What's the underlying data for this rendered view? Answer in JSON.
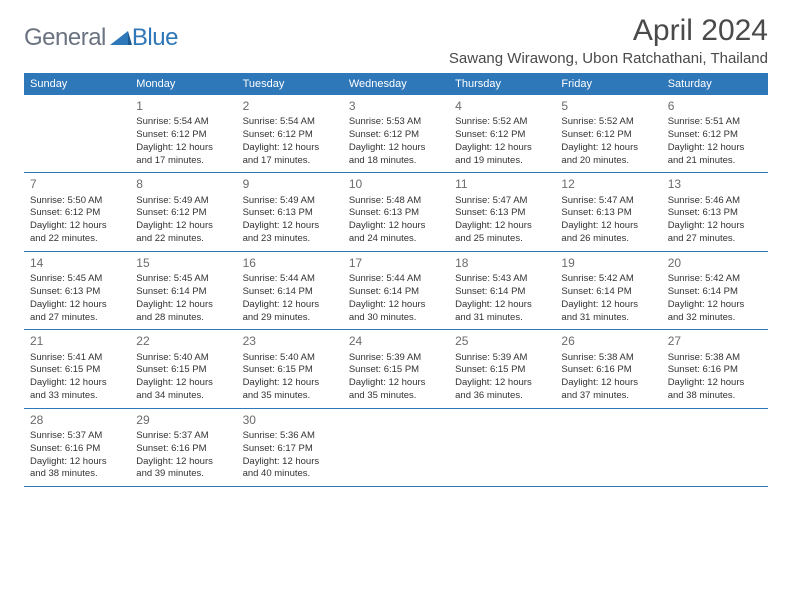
{
  "logo": {
    "text1": "General",
    "text2": "Blue"
  },
  "title": "April 2024",
  "location": "Sawang Wirawong, Ubon Ratchathani, Thailand",
  "colors": {
    "header_bg": "#2e77b8",
    "header_text": "#ffffff",
    "border": "#2e77b8",
    "body_text": "#333333",
    "daynum": "#6b6b6b",
    "logo_gray": "#6b7280",
    "logo_blue": "#2e77b8",
    "background": "#ffffff"
  },
  "typography": {
    "title_fontsize": 30,
    "location_fontsize": 15,
    "header_fontsize": 11,
    "daynum_fontsize": 12,
    "cell_fontsize": 9.5,
    "logo_fontsize": 24
  },
  "day_names": [
    "Sunday",
    "Monday",
    "Tuesday",
    "Wednesday",
    "Thursday",
    "Friday",
    "Saturday"
  ],
  "weeks": [
    [
      {
        "n": "",
        "sr": "",
        "ss": "",
        "dl": ""
      },
      {
        "n": "1",
        "sr": "Sunrise: 5:54 AM",
        "ss": "Sunset: 6:12 PM",
        "dl": "Daylight: 12 hours and 17 minutes."
      },
      {
        "n": "2",
        "sr": "Sunrise: 5:54 AM",
        "ss": "Sunset: 6:12 PM",
        "dl": "Daylight: 12 hours and 17 minutes."
      },
      {
        "n": "3",
        "sr": "Sunrise: 5:53 AM",
        "ss": "Sunset: 6:12 PM",
        "dl": "Daylight: 12 hours and 18 minutes."
      },
      {
        "n": "4",
        "sr": "Sunrise: 5:52 AM",
        "ss": "Sunset: 6:12 PM",
        "dl": "Daylight: 12 hours and 19 minutes."
      },
      {
        "n": "5",
        "sr": "Sunrise: 5:52 AM",
        "ss": "Sunset: 6:12 PM",
        "dl": "Daylight: 12 hours and 20 minutes."
      },
      {
        "n": "6",
        "sr": "Sunrise: 5:51 AM",
        "ss": "Sunset: 6:12 PM",
        "dl": "Daylight: 12 hours and 21 minutes."
      }
    ],
    [
      {
        "n": "7",
        "sr": "Sunrise: 5:50 AM",
        "ss": "Sunset: 6:12 PM",
        "dl": "Daylight: 12 hours and 22 minutes."
      },
      {
        "n": "8",
        "sr": "Sunrise: 5:49 AM",
        "ss": "Sunset: 6:12 PM",
        "dl": "Daylight: 12 hours and 22 minutes."
      },
      {
        "n": "9",
        "sr": "Sunrise: 5:49 AM",
        "ss": "Sunset: 6:13 PM",
        "dl": "Daylight: 12 hours and 23 minutes."
      },
      {
        "n": "10",
        "sr": "Sunrise: 5:48 AM",
        "ss": "Sunset: 6:13 PM",
        "dl": "Daylight: 12 hours and 24 minutes."
      },
      {
        "n": "11",
        "sr": "Sunrise: 5:47 AM",
        "ss": "Sunset: 6:13 PM",
        "dl": "Daylight: 12 hours and 25 minutes."
      },
      {
        "n": "12",
        "sr": "Sunrise: 5:47 AM",
        "ss": "Sunset: 6:13 PM",
        "dl": "Daylight: 12 hours and 26 minutes."
      },
      {
        "n": "13",
        "sr": "Sunrise: 5:46 AM",
        "ss": "Sunset: 6:13 PM",
        "dl": "Daylight: 12 hours and 27 minutes."
      }
    ],
    [
      {
        "n": "14",
        "sr": "Sunrise: 5:45 AM",
        "ss": "Sunset: 6:13 PM",
        "dl": "Daylight: 12 hours and 27 minutes."
      },
      {
        "n": "15",
        "sr": "Sunrise: 5:45 AM",
        "ss": "Sunset: 6:14 PM",
        "dl": "Daylight: 12 hours and 28 minutes."
      },
      {
        "n": "16",
        "sr": "Sunrise: 5:44 AM",
        "ss": "Sunset: 6:14 PM",
        "dl": "Daylight: 12 hours and 29 minutes."
      },
      {
        "n": "17",
        "sr": "Sunrise: 5:44 AM",
        "ss": "Sunset: 6:14 PM",
        "dl": "Daylight: 12 hours and 30 minutes."
      },
      {
        "n": "18",
        "sr": "Sunrise: 5:43 AM",
        "ss": "Sunset: 6:14 PM",
        "dl": "Daylight: 12 hours and 31 minutes."
      },
      {
        "n": "19",
        "sr": "Sunrise: 5:42 AM",
        "ss": "Sunset: 6:14 PM",
        "dl": "Daylight: 12 hours and 31 minutes."
      },
      {
        "n": "20",
        "sr": "Sunrise: 5:42 AM",
        "ss": "Sunset: 6:14 PM",
        "dl": "Daylight: 12 hours and 32 minutes."
      }
    ],
    [
      {
        "n": "21",
        "sr": "Sunrise: 5:41 AM",
        "ss": "Sunset: 6:15 PM",
        "dl": "Daylight: 12 hours and 33 minutes."
      },
      {
        "n": "22",
        "sr": "Sunrise: 5:40 AM",
        "ss": "Sunset: 6:15 PM",
        "dl": "Daylight: 12 hours and 34 minutes."
      },
      {
        "n": "23",
        "sr": "Sunrise: 5:40 AM",
        "ss": "Sunset: 6:15 PM",
        "dl": "Daylight: 12 hours and 35 minutes."
      },
      {
        "n": "24",
        "sr": "Sunrise: 5:39 AM",
        "ss": "Sunset: 6:15 PM",
        "dl": "Daylight: 12 hours and 35 minutes."
      },
      {
        "n": "25",
        "sr": "Sunrise: 5:39 AM",
        "ss": "Sunset: 6:15 PM",
        "dl": "Daylight: 12 hours and 36 minutes."
      },
      {
        "n": "26",
        "sr": "Sunrise: 5:38 AM",
        "ss": "Sunset: 6:16 PM",
        "dl": "Daylight: 12 hours and 37 minutes."
      },
      {
        "n": "27",
        "sr": "Sunrise: 5:38 AM",
        "ss": "Sunset: 6:16 PM",
        "dl": "Daylight: 12 hours and 38 minutes."
      }
    ],
    [
      {
        "n": "28",
        "sr": "Sunrise: 5:37 AM",
        "ss": "Sunset: 6:16 PM",
        "dl": "Daylight: 12 hours and 38 minutes."
      },
      {
        "n": "29",
        "sr": "Sunrise: 5:37 AM",
        "ss": "Sunset: 6:16 PM",
        "dl": "Daylight: 12 hours and 39 minutes."
      },
      {
        "n": "30",
        "sr": "Sunrise: 5:36 AM",
        "ss": "Sunset: 6:17 PM",
        "dl": "Daylight: 12 hours and 40 minutes."
      },
      {
        "n": "",
        "sr": "",
        "ss": "",
        "dl": ""
      },
      {
        "n": "",
        "sr": "",
        "ss": "",
        "dl": ""
      },
      {
        "n": "",
        "sr": "",
        "ss": "",
        "dl": ""
      },
      {
        "n": "",
        "sr": "",
        "ss": "",
        "dl": ""
      }
    ]
  ]
}
